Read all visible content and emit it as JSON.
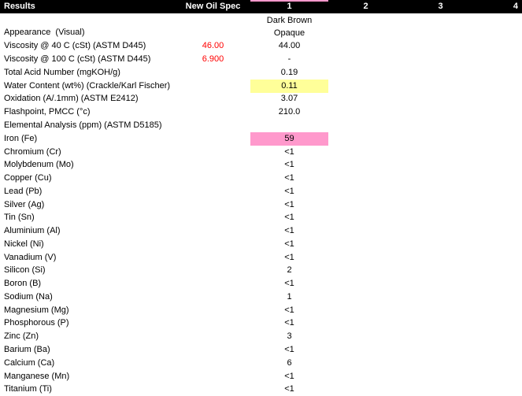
{
  "colors": {
    "header_bg": "#000000",
    "header_text": "#ffffff",
    "spec_text_red": "#ff0000",
    "highlight_yellow": "#ffff99",
    "highlight_pink": "#ff99cc"
  },
  "header": {
    "results": "Results",
    "new_oil_spec": "New Oil Spec",
    "samples": [
      "1",
      "2",
      "3",
      "4"
    ]
  },
  "table": {
    "rows": [
      {
        "label": "Appearance  (Visual)",
        "spec": "",
        "s1": "Dark Brown\nOpaque"
      },
      {
        "label": "Viscosity @ 40 C (cSt) (ASTM D445)",
        "spec": "46.00",
        "s1": "44.00"
      },
      {
        "label": "Viscosity @ 100 C (cSt) (ASTM D445)",
        "spec": "6.900",
        "s1": "-"
      },
      {
        "label": "Total Acid Number (mgKOH/g)",
        "spec": "",
        "s1": "0.19"
      },
      {
        "label": "Water Content (wt%) (Crackle/Karl Fischer)",
        "spec": "",
        "s1": "0.11",
        "highlight": "yellow"
      },
      {
        "label": "Oxidation (A/.1mm) (ASTM E2412)",
        "spec": "",
        "s1": "3.07"
      },
      {
        "label": "Flashpoint, PMCC (°c)",
        "spec": "",
        "s1": "210.0"
      },
      {
        "label": "Elemental Analysis (ppm) (ASTM D5185)",
        "spec": "",
        "s1": ""
      },
      {
        "label": "Iron (Fe)",
        "spec": "",
        "s1": "59",
        "highlight": "pink"
      },
      {
        "label": "Chromium (Cr)",
        "spec": "",
        "s1": "<1"
      },
      {
        "label": "Molybdenum (Mo)",
        "spec": "",
        "s1": "<1"
      },
      {
        "label": "Copper (Cu)",
        "spec": "",
        "s1": "<1"
      },
      {
        "label": "Lead (Pb)",
        "spec": "",
        "s1": "<1"
      },
      {
        "label": "Silver (Ag)",
        "spec": "",
        "s1": "<1"
      },
      {
        "label": "Tin (Sn)",
        "spec": "",
        "s1": "<1"
      },
      {
        "label": "Aluminium (Al)",
        "spec": "",
        "s1": "<1"
      },
      {
        "label": "Nickel (Ni)",
        "spec": "",
        "s1": "<1"
      },
      {
        "label": "Vanadium (V)",
        "spec": "",
        "s1": "<1"
      },
      {
        "label": "Silicon (Si)",
        "spec": "",
        "s1": "2"
      },
      {
        "label": "Boron (B)",
        "spec": "",
        "s1": "<1"
      },
      {
        "label": "Sodium (Na)",
        "spec": "",
        "s1": "1"
      },
      {
        "label": "Magnesium (Mg)",
        "spec": "",
        "s1": "<1"
      },
      {
        "label": "Phosphorous (P)",
        "spec": "",
        "s1": "<1"
      },
      {
        "label": "Zinc (Zn)",
        "spec": "",
        "s1": "3"
      },
      {
        "label": "Barium (Ba)",
        "spec": "",
        "s1": "<1"
      },
      {
        "label": "Calcium (Ca)",
        "spec": "",
        "s1": "6"
      },
      {
        "label": "Manganese (Mn)",
        "spec": "",
        "s1": "<1"
      },
      {
        "label": "Titanium (Ti)",
        "spec": "",
        "s1": "<1"
      }
    ]
  }
}
